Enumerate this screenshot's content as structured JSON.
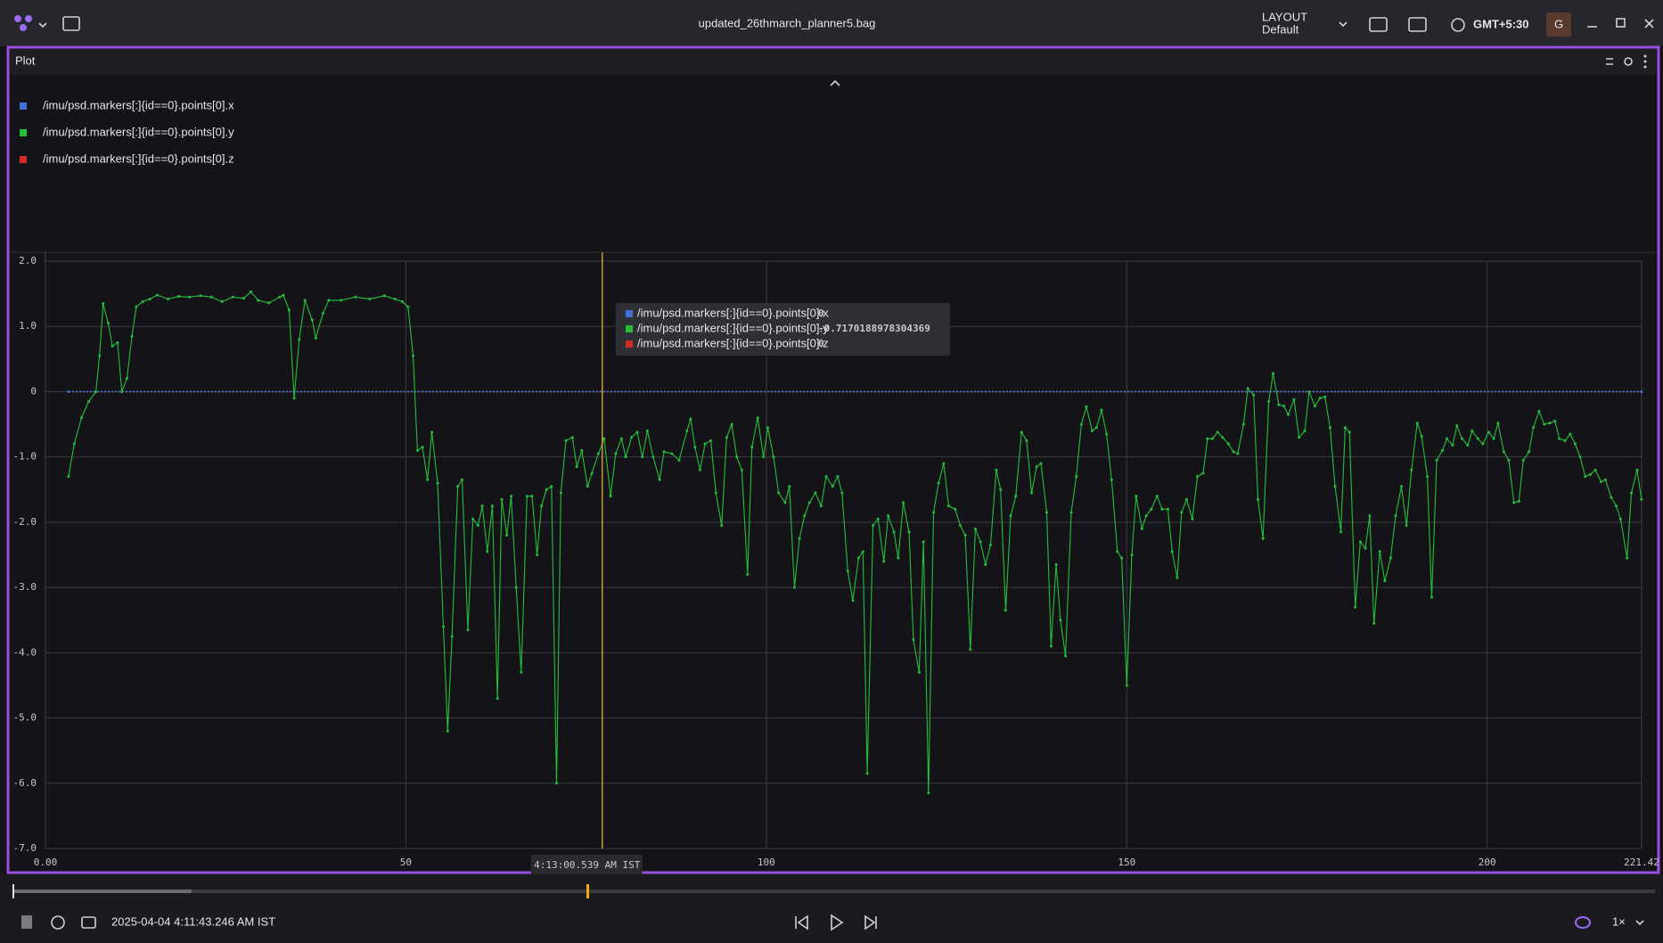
{
  "ui": {
    "file_title": "updated_26thmarch_planner5.bag",
    "layout_label": "LAYOUT",
    "layout_name": "Default",
    "timezone": "GMT+5:30",
    "avatar": "G",
    "panel_title": "Plot",
    "current_time": "2025-04-04 4:11:43.246 AM IST",
    "speed": "1×"
  },
  "chart_data": {
    "type": "line",
    "series": [
      {
        "name": "/imu/psd.markers[:]{id==0}.points[0].x",
        "color": "#3f6fd8",
        "x": [
          3.2,
          221.4
        ],
        "values": [
          0,
          0
        ]
      },
      {
        "name": "/imu/psd.markers[:]{id==0}.points[0].y",
        "color": "#22c03a",
        "x": [
          3.2,
          4,
          5,
          6,
          7,
          7.5,
          8,
          8.7,
          9.3,
          10,
          10.6,
          11.3,
          12,
          12.6,
          13.5,
          14.5,
          15.5,
          17,
          18.5,
          20,
          21.5,
          23,
          24.5,
          26,
          27.5,
          28.5,
          29.5,
          31,
          32.5,
          33,
          33.8,
          34.5,
          35.2,
          36,
          37,
          37.5,
          38.5,
          39.3,
          41,
          43,
          45,
          47,
          48.5,
          49.5,
          50.3,
          51,
          51.6,
          52.3,
          53,
          53.6,
          54.4,
          55.2,
          55.8,
          56.4,
          57.2,
          57.8,
          58.6,
          59.3,
          60,
          60.6,
          61.3,
          62,
          62.7,
          63.3,
          64,
          64.6,
          65.3,
          66,
          66.8,
          67.5,
          68.2,
          68.8,
          69.5,
          70.2,
          70.9,
          71.5,
          72.2,
          73.1,
          73.7,
          74.4,
          75.2,
          75.8,
          76.7,
          77.5,
          78.4,
          79.1,
          79.9,
          80.5,
          81.3,
          82.1,
          82.8,
          83.5,
          84.3,
          85.2,
          85.8,
          86.9,
          87.9,
          89,
          89.5,
          90.1,
          90.8,
          91.5,
          92.3,
          93,
          93.8,
          94.5,
          95.2,
          95.9,
          96.6,
          97.4,
          98,
          98.8,
          99.6,
          100.2,
          101,
          101.7,
          102.6,
          103.2,
          103.9,
          104.6,
          105.3,
          106,
          106.8,
          107.6,
          108.3,
          109.2,
          109.9,
          110.5,
          111.3,
          112,
          112.8,
          113.4,
          114,
          114.8,
          115.5,
          116.3,
          116.9,
          117.7,
          118.3,
          119,
          119.8,
          120.4,
          121.2,
          121.8,
          122.5,
          123.2,
          123.9,
          124.6,
          125.3,
          126.2,
          126.9,
          127.6,
          128.3,
          129,
          129.7,
          130.4,
          131.1,
          131.9,
          132.5,
          133.2,
          133.9,
          134.6,
          135.4,
          136.1,
          136.8,
          137.5,
          138.1,
          138.9,
          139.5,
          140.2,
          140.8,
          141.5,
          142.3,
          143,
          143.7,
          144.4,
          145.2,
          145.8,
          146.5,
          147.2,
          147.9,
          148.7,
          149.3,
          150,
          150.7,
          151.3,
          152.1,
          152.7,
          153.4,
          154.2,
          154.9,
          155.7,
          156.3,
          157,
          157.6,
          158.3,
          159.1,
          159.8,
          160.6,
          161.2,
          161.9,
          162.6,
          163.3,
          164.1,
          164.8,
          165.4,
          166.2,
          166.8,
          167.6,
          168.2,
          168.9,
          169.7,
          170.3,
          171.1,
          171.8,
          172.4,
          173.2,
          173.9,
          174.7,
          175.3,
          176.1,
          176.8,
          177.5,
          178.2,
          178.9,
          179.7,
          180.3,
          180.9,
          181.7,
          182.4,
          183.1,
          183.7,
          184.3,
          185.1,
          185.8,
          186.6,
          187.3,
          188.1,
          188.8,
          189.5,
          190.3,
          190.9,
          191.7,
          192.3,
          193,
          193.8,
          194.4,
          195.2,
          195.8,
          196.5,
          197.3,
          197.9,
          198.7,
          199.4,
          200.2,
          200.9,
          201.5,
          202.3,
          203,
          203.7,
          204.4,
          205,
          205.8,
          206.4,
          207.2,
          207.9,
          208.7,
          209.4,
          210,
          210.8,
          211.5,
          212.2,
          212.9,
          213.6,
          214.3,
          215,
          215.8,
          216.4,
          217.2,
          217.9,
          218.5,
          219.4,
          220,
          220.8,
          221.4
        ],
        "values": [
          -1.3,
          -0.8,
          -0.4,
          -0.15,
          0,
          0.55,
          1.35,
          1.05,
          0.7,
          0.75,
          0,
          0.2,
          0.85,
          1.3,
          1.38,
          1.42,
          1.48,
          1.42,
          1.46,
          1.45,
          1.47,
          1.45,
          1.38,
          1.45,
          1.43,
          1.53,
          1.4,
          1.36,
          1.45,
          1.48,
          1.25,
          -0.1,
          0.8,
          1.4,
          1.1,
          0.82,
          1.2,
          1.4,
          1.4,
          1.45,
          1.42,
          1.47,
          1.42,
          1.38,
          1.3,
          0.55,
          -0.9,
          -0.85,
          -1.35,
          -0.62,
          -1.4,
          -3.6,
          -5.2,
          -3.75,
          -1.45,
          -1.35,
          -3.65,
          -1.95,
          -2.05,
          -1.75,
          -2.45,
          -1.75,
          -4.7,
          -1.65,
          -2.2,
          -1.6,
          -3,
          -4.3,
          -1.6,
          -1.6,
          -2.5,
          -1.75,
          -1.5,
          -1.45,
          -6,
          -1.55,
          -0.75,
          -0.7,
          -1.15,
          -0.9,
          -1.45,
          -1.25,
          -0.95,
          -0.72,
          -1.6,
          -0.95,
          -0.72,
          -1,
          -0.7,
          -0.62,
          -1,
          -0.6,
          -1,
          -1.35,
          -0.92,
          -0.95,
          -1.05,
          -0.6,
          -0.42,
          -0.85,
          -1.2,
          -0.8,
          -0.75,
          -1.55,
          -2.05,
          -0.7,
          -0.5,
          -1,
          -1.2,
          -2.8,
          -0.85,
          -0.4,
          -1,
          -0.55,
          -1,
          -1.55,
          -1.7,
          -1.45,
          -3,
          -2.25,
          -1.9,
          -1.7,
          -1.55,
          -1.75,
          -1.3,
          -1.45,
          -1.3,
          -1.55,
          -2.75,
          -3.2,
          -2.55,
          -2.45,
          -5.85,
          -2.05,
          -1.95,
          -2.6,
          -1.9,
          -2.15,
          -2.55,
          -1.7,
          -2.15,
          -3.8,
          -4.3,
          -2.3,
          -6.15,
          -1.85,
          -1.4,
          -1.1,
          -1.75,
          -1.8,
          -2.05,
          -2.2,
          -3.95,
          -2.1,
          -2.3,
          -2.65,
          -2.35,
          -1.2,
          -1.5,
          -3.35,
          -1.9,
          -1.6,
          -0.62,
          -0.75,
          -1.55,
          -1.15,
          -1.1,
          -1.85,
          -3.9,
          -2.65,
          -3.5,
          -4.05,
          -1.85,
          -1.3,
          -0.5,
          -0.23,
          -0.6,
          -0.55,
          -0.28,
          -0.65,
          -1.35,
          -2.45,
          -2.55,
          -4.5,
          -2.5,
          -1.6,
          -2.1,
          -1.9,
          -1.8,
          -1.6,
          -1.8,
          -1.8,
          -2.45,
          -2.85,
          -1.85,
          -1.65,
          -1.95,
          -1.3,
          -1.25,
          -0.72,
          -0.72,
          -0.62,
          -0.7,
          -0.8,
          -0.92,
          -0.95,
          -0.5,
          0.05,
          -0.05,
          -1.65,
          -2.25,
          -0.15,
          0.28,
          -0.2,
          -0.22,
          -0.35,
          -0.12,
          -0.7,
          -0.6,
          0,
          -0.22,
          -0.1,
          -0.08,
          -0.55,
          -1.45,
          -2.15,
          -0.55,
          -0.62,
          -3.3,
          -2.3,
          -2.4,
          -1.9,
          -3.55,
          -2.45,
          -2.9,
          -2.55,
          -1.9,
          -1.45,
          -2.05,
          -1.2,
          -0.48,
          -0.68,
          -1.3,
          -3.15,
          -1.05,
          -0.9,
          -0.72,
          -0.82,
          -0.52,
          -0.72,
          -0.82,
          -0.6,
          -0.72,
          -0.8,
          -0.62,
          -0.72,
          -0.48,
          -0.92,
          -1.05,
          -1.7,
          -1.68,
          -1.05,
          -0.92,
          -0.55,
          -0.3,
          -0.5,
          -0.48,
          -0.45,
          -0.72,
          -0.75,
          -0.65,
          -0.8,
          -1,
          -1.3,
          -1.27,
          -1.2,
          -1.38,
          -1.35,
          -1.62,
          -1.75,
          -1.95,
          -2.55,
          -1.55,
          -1.2,
          -1.65
        ]
      },
      {
        "name": "/imu/psd.markers[:]{id==0}.points[0].z",
        "color": "#d42a2a",
        "x": [
          3.2,
          221.4
        ],
        "values": [
          0,
          0
        ]
      }
    ],
    "xlim": [
      0,
      221.42
    ],
    "xticks": [
      {
        "value": 0,
        "label": "0.00"
      },
      50,
      100,
      150,
      200,
      221.42
    ],
    "ylim": [
      -7,
      2
    ],
    "yticks": [
      {
        "value": 2,
        "label": "2.0"
      },
      {
        "value": 1,
        "label": "1.0"
      },
      0,
      {
        "value": -1,
        "label": "-1.0"
      },
      {
        "value": -2,
        "label": "-2.0"
      },
      {
        "value": -3,
        "label": "-3.0"
      },
      {
        "value": -4,
        "label": "-4.0"
      },
      {
        "value": -5,
        "label": "-5.0"
      },
      {
        "value": -6,
        "label": "-6.0"
      },
      {
        "value": -7,
        "label": "-7.0"
      }
    ],
    "grid": true,
    "tooltip": {
      "x": 77.24,
      "time": "4:13:00.539 AM IST",
      "values": [
        0,
        -0.7170188978304369,
        0
      ]
    }
  }
}
